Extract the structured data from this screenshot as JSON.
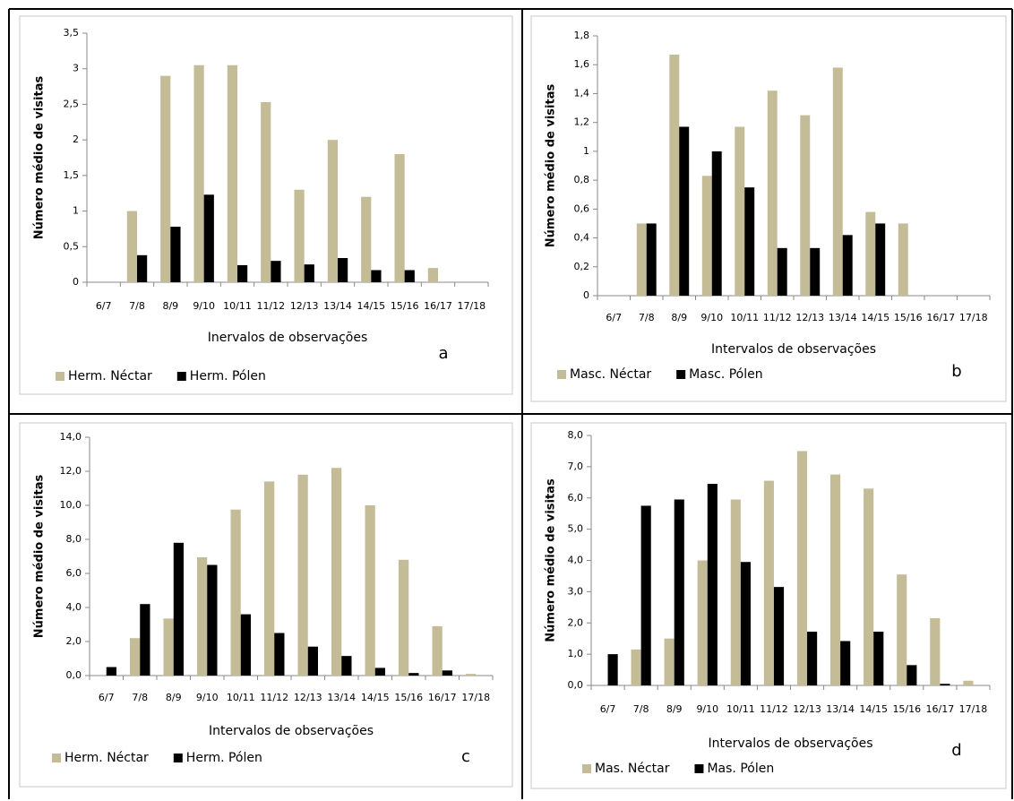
{
  "chart_data": [
    {
      "type": "bar",
      "ylabel": "Número médio de visitas",
      "xlabel": "Inervalos de observações",
      "annotation": "a",
      "categories": [
        "6/7",
        "7/8",
        "8/9",
        "9/10",
        "10/11",
        "11/12",
        "12/13",
        "13/14",
        "14/15",
        "15/16",
        "16/17",
        "17/18"
      ],
      "series": [
        {
          "name": "Herm. Néctar",
          "color": "#c4bc96",
          "values": [
            0,
            1.0,
            2.9,
            3.05,
            3.05,
            2.53,
            1.3,
            2.0,
            1.2,
            1.8,
            0.2,
            0
          ]
        },
        {
          "name": "Herm. Pólen",
          "color": "#000000",
          "values": [
            0,
            0.38,
            0.78,
            1.23,
            0.24,
            0.3,
            0.25,
            0.34,
            0.17,
            0.17,
            0,
            0
          ]
        }
      ],
      "ylim": [
        0,
        3.5
      ],
      "yticks": [
        0,
        {
          "value": 0.5,
          "label": "0,5"
        },
        1,
        {
          "value": 1.5,
          "label": "1,5"
        },
        2,
        {
          "value": 2.5,
          "label": "2,5"
        },
        3,
        {
          "value": 3.5,
          "label": "3,5"
        }
      ]
    },
    {
      "type": "bar",
      "ylabel": "Número médio de visitas",
      "xlabel": "Intervalos de observações",
      "annotation": "b",
      "categories": [
        "6/7",
        "7/8",
        "8/9",
        "9/10",
        "10/11",
        "11/12",
        "12/13",
        "13/14",
        "14/15",
        "15/16",
        "16/17",
        "17/18"
      ],
      "series": [
        {
          "name": "Masc. Néctar",
          "color": "#c4bc96",
          "values": [
            0,
            0.5,
            1.67,
            0.83,
            1.17,
            1.42,
            1.25,
            1.58,
            0.58,
            0.5,
            0,
            0
          ]
        },
        {
          "name": "Masc. Pólen",
          "color": "#000000",
          "values": [
            0,
            0.5,
            1.17,
            1.0,
            0.75,
            0.33,
            0.33,
            0.42,
            0.5,
            0,
            0,
            0
          ]
        }
      ],
      "ylim": [
        0,
        1.8
      ],
      "yticks": [
        0,
        {
          "value": 0.2,
          "label": "0,2"
        },
        {
          "value": 0.4,
          "label": "0,4"
        },
        {
          "value": 0.6,
          "label": "0,6"
        },
        {
          "value": 0.8,
          "label": "0,8"
        },
        1,
        {
          "value": 1.2,
          "label": "1,2"
        },
        {
          "value": 1.4,
          "label": "1,4"
        },
        {
          "value": 1.6,
          "label": "1,6"
        },
        {
          "value": 1.8,
          "label": "1,8"
        }
      ]
    },
    {
      "type": "bar",
      "ylabel": "Número médio de visitas",
      "xlabel": "Intervalos de observações",
      "annotation": "c",
      "categories": [
        "6/7",
        "7/8",
        "8/9",
        "9/10",
        "10/11",
        "11/12",
        "12/13",
        "13/14",
        "14/15",
        "15/16",
        "16/17",
        "17/18"
      ],
      "series": [
        {
          "name": "Herm. Néctar",
          "color": "#c4bc96",
          "values": [
            0,
            2.2,
            3.35,
            6.95,
            9.75,
            11.4,
            11.8,
            12.2,
            10.0,
            6.8,
            2.9,
            0.1
          ]
        },
        {
          "name": "Herm. Pólen",
          "color": "#000000",
          "values": [
            0.5,
            4.2,
            7.8,
            6.5,
            3.6,
            2.5,
            1.7,
            1.15,
            0.45,
            0.15,
            0.3,
            0
          ]
        }
      ],
      "ylim": [
        0,
        14
      ],
      "yticks": [
        {
          "value": 0,
          "label": "0,0"
        },
        {
          "value": 2,
          "label": "2,0"
        },
        {
          "value": 4,
          "label": "4,0"
        },
        {
          "value": 6,
          "label": "6,0"
        },
        {
          "value": 8,
          "label": "8,0"
        },
        {
          "value": 10,
          "label": "10,0"
        },
        {
          "value": 12,
          "label": "12,0"
        },
        {
          "value": 14,
          "label": "14,0"
        }
      ]
    },
    {
      "type": "bar",
      "ylabel": "Número médio de visitas",
      "xlabel": "Intervalos de observações",
      "annotation": "d",
      "categories": [
        "6/7",
        "7/8",
        "8/9",
        "9/10",
        "10/11",
        "11/12",
        "12/13",
        "13/14",
        "14/15",
        "15/16",
        "16/17",
        "17/18"
      ],
      "series": [
        {
          "name": "Mas. Néctar",
          "color": "#c4bc96",
          "values": [
            0,
            1.15,
            1.5,
            4.0,
            5.95,
            6.55,
            7.5,
            6.75,
            6.3,
            3.55,
            2.15,
            0.15
          ]
        },
        {
          "name": "Mas. Pólen",
          "color": "#000000",
          "values": [
            1.0,
            5.75,
            5.95,
            6.45,
            3.95,
            3.15,
            1.72,
            1.42,
            1.72,
            0.65,
            0.05,
            0
          ]
        }
      ],
      "ylim": [
        0,
        8
      ],
      "yticks": [
        {
          "value": 0,
          "label": "0,0"
        },
        {
          "value": 1,
          "label": "1,0"
        },
        {
          "value": 2,
          "label": "2,0"
        },
        {
          "value": 3,
          "label": "3,0"
        },
        {
          "value": 4,
          "label": "4,0"
        },
        {
          "value": 5,
          "label": "5,0"
        },
        {
          "value": 6,
          "label": "6,0"
        },
        {
          "value": 7,
          "label": "7,0"
        },
        {
          "value": 8,
          "label": "8,0"
        }
      ]
    }
  ]
}
